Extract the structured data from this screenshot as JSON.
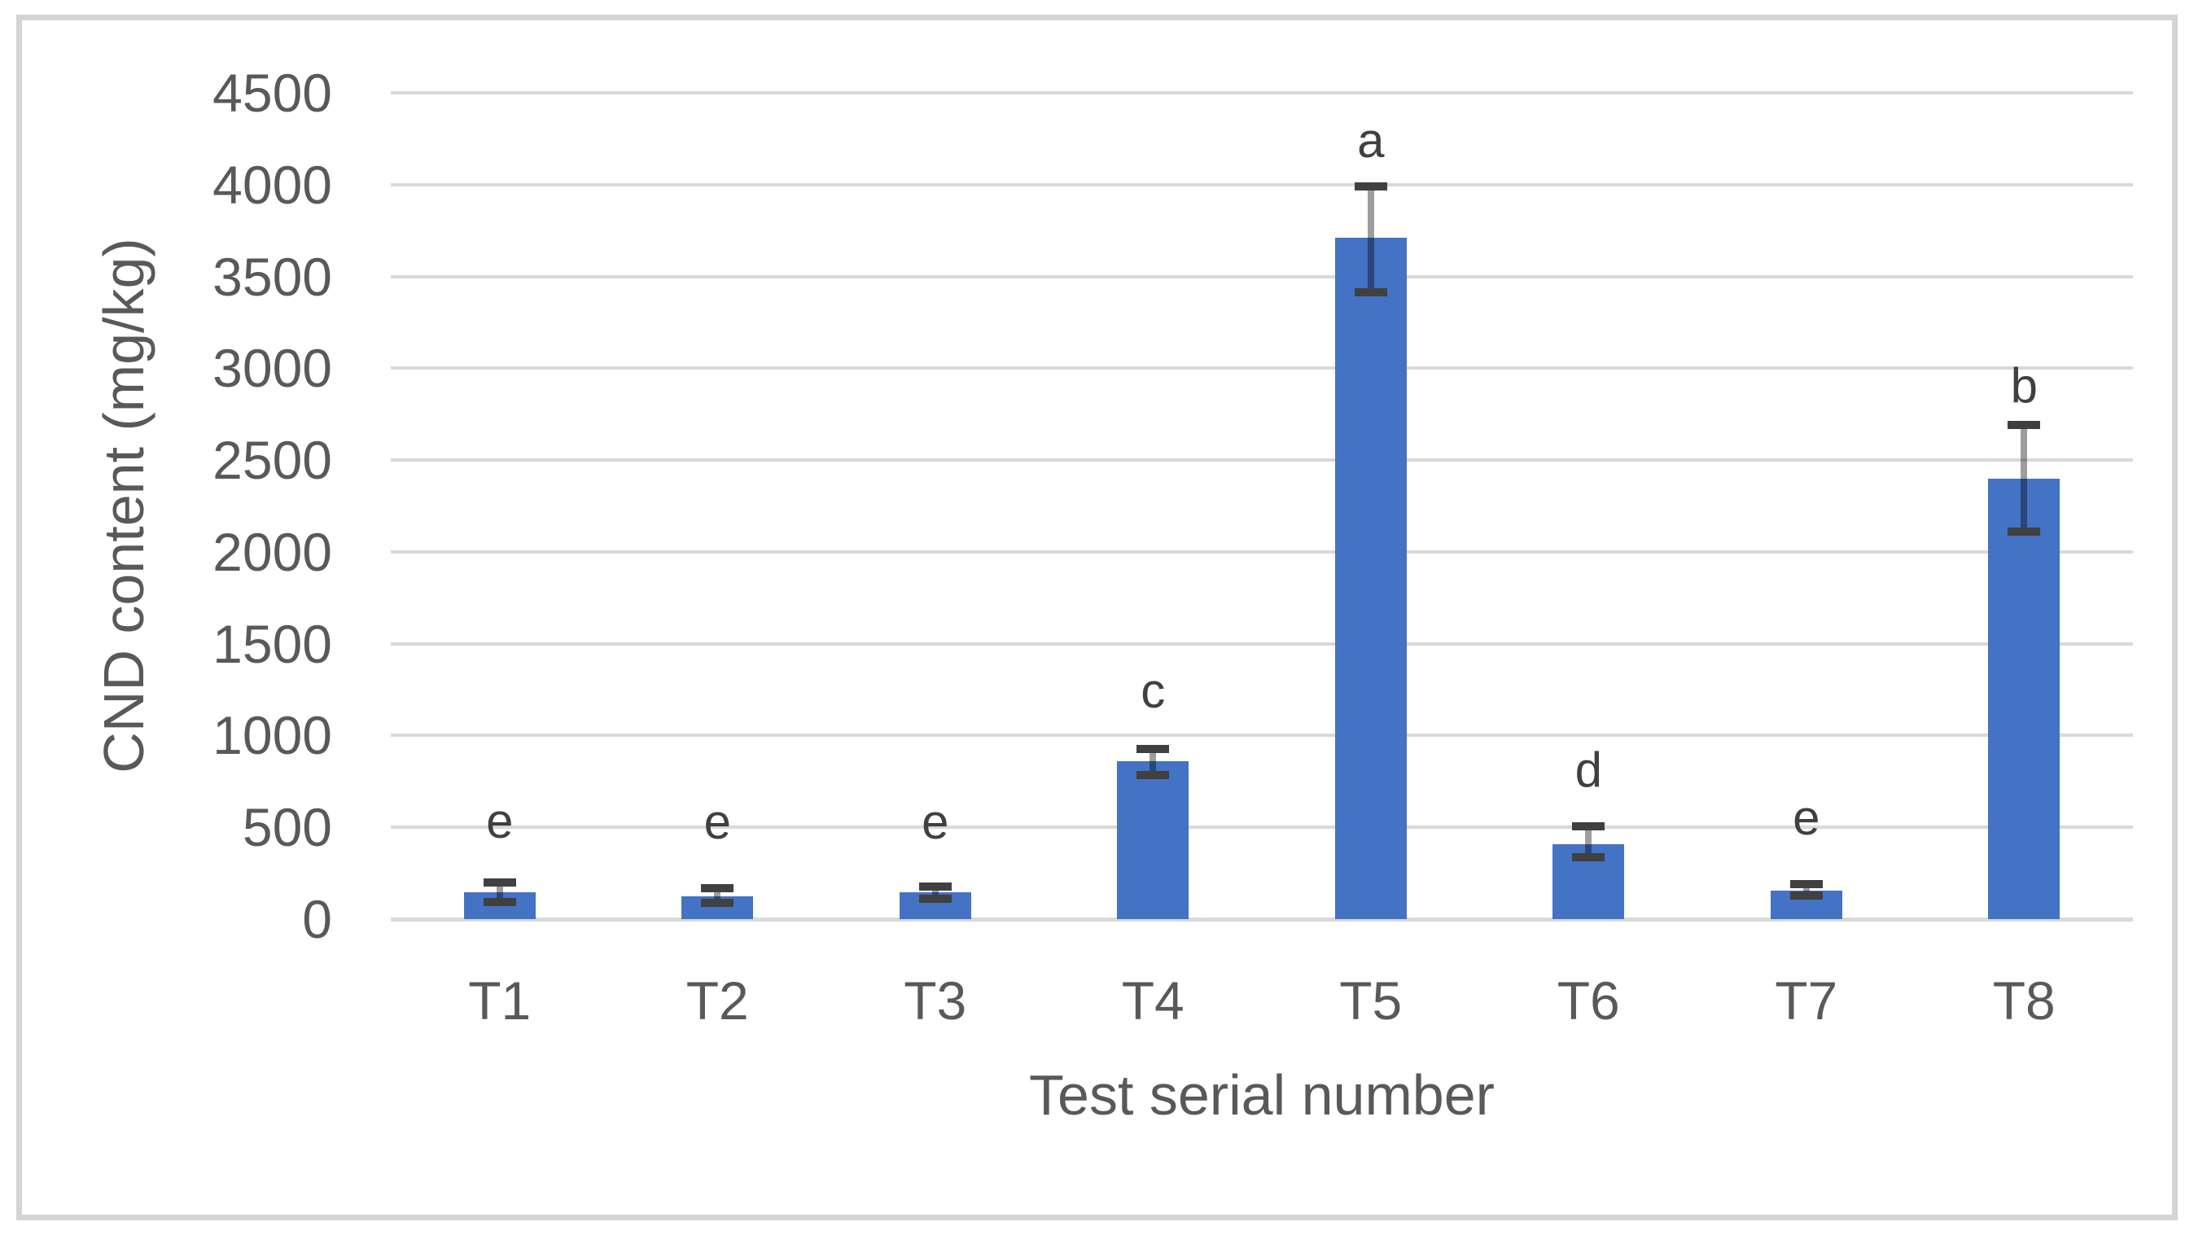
{
  "chart_data": {
    "type": "bar",
    "title": "",
    "xlabel": "Test serial number",
    "ylabel": "CND content (mg/kg)",
    "categories": [
      "T1",
      "T2",
      "T3",
      "T4",
      "T5",
      "T6",
      "T7",
      "T8"
    ],
    "series": [
      {
        "name": "CND content",
        "values": [
          145,
          124,
          145,
          860,
          3710,
          410,
          157,
          2400
        ],
        "error_whisker_top": [
          200,
          170,
          176,
          925,
          3990,
          505,
          190,
          2690
        ],
        "error_whisker_bottom": [
          95,
          88,
          112,
          786,
          3415,
          337,
          130,
          2110
        ]
      }
    ],
    "annotations": {
      "significance_letters": [
        "e",
        "e",
        "e",
        "c",
        "a",
        "d",
        "e",
        "b"
      ],
      "letter_baseline_values": [
        400,
        395,
        394,
        1110,
        4105,
        677,
        418,
        2770
      ]
    },
    "ylim": [
      0,
      4500
    ],
    "ytick_step": 500,
    "yticks": [
      0,
      500,
      1000,
      1500,
      2000,
      2500,
      3000,
      3500,
      4000,
      4500
    ],
    "grid": "horizontal",
    "legend": "none",
    "bar_color": "#4472C4",
    "gridline_color": "#D9D9D9",
    "error_bar_color": "#404040",
    "text_color": "#595959"
  }
}
